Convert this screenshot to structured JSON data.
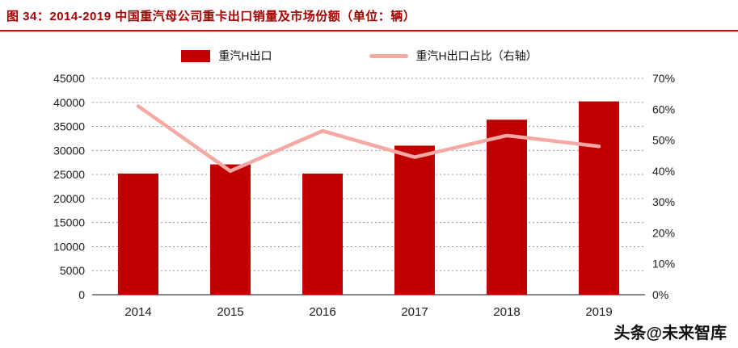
{
  "header": {
    "title": "图 34：2014-2019 中国重汽母公司重卡出口销量及市场份额（单位：辆）"
  },
  "legend": {
    "bar_label": "重汽H出口",
    "line_label": "重汽H出口占比（右轴）"
  },
  "watermark": {
    "text": "头条@未来智库"
  },
  "colors": {
    "bar": "#c00000",
    "line": "#f5a9a4",
    "title": "#a30000",
    "title_rule": "#e60000",
    "grid": "#9b9b9b",
    "axis": "#404040",
    "text": "#1a1a1a"
  },
  "chart_data": {
    "type": "combo",
    "categories": [
      "2014",
      "2015",
      "2016",
      "2017",
      "2018",
      "2019"
    ],
    "series": [
      {
        "name": "重汽H出口",
        "type": "bar",
        "axis": "left",
        "values": [
          25200,
          27100,
          25200,
          31000,
          36400,
          40200
        ]
      },
      {
        "name": "重汽H出口占比（右轴）",
        "type": "line",
        "axis": "right",
        "values": [
          61,
          40,
          53,
          44.5,
          51.5,
          48
        ]
      }
    ],
    "left_axis": {
      "min": 0,
      "max": 45000,
      "step": 5000,
      "tick_labels": [
        "0",
        "5000",
        "10000",
        "15000",
        "20000",
        "25000",
        "30000",
        "35000",
        "40000",
        "45000"
      ]
    },
    "right_axis": {
      "min": 0,
      "max": 70,
      "step": 10,
      "tick_labels": [
        "0%",
        "10%",
        "20%",
        "30%",
        "40%",
        "50%",
        "60%",
        "70%"
      ]
    },
    "grid": true,
    "legend_position": "top"
  }
}
